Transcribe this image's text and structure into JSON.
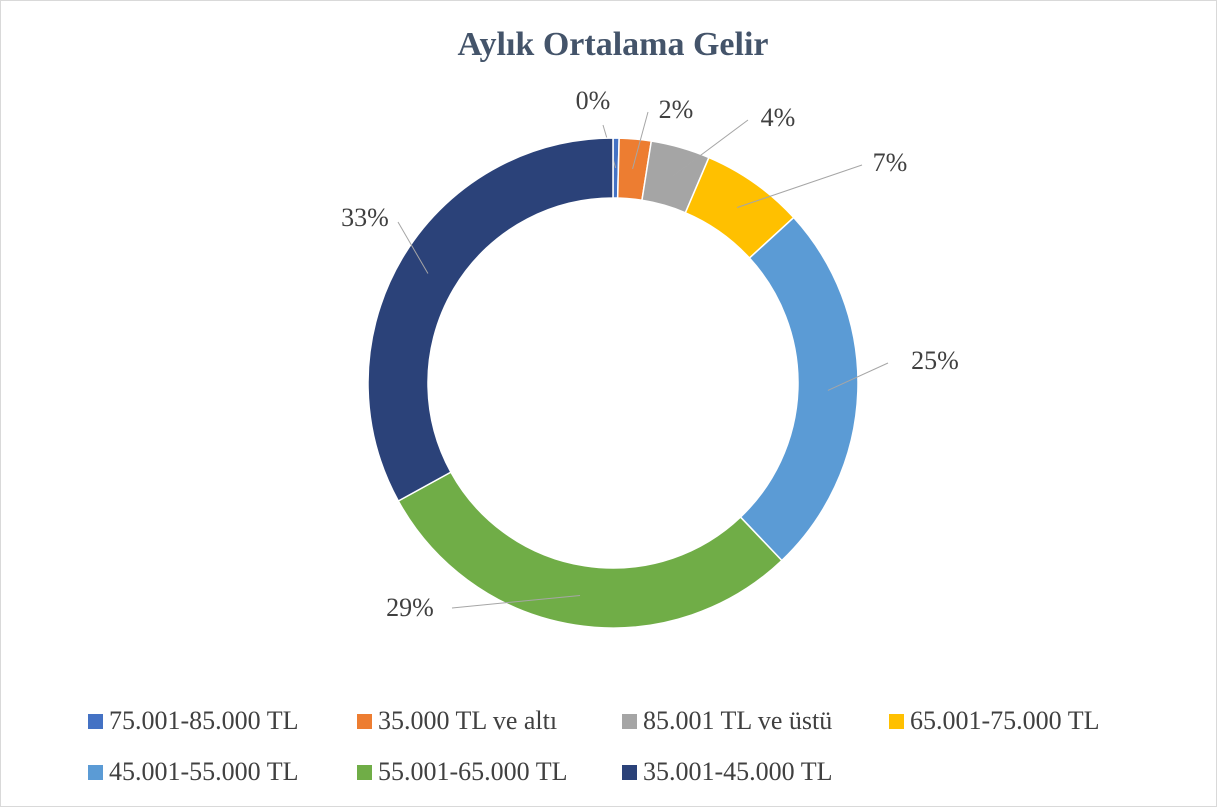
{
  "chart_data": {
    "type": "donut",
    "title": "Aylık Ortalama Gelir",
    "categories": [
      "75.001-85.000 TL",
      "35.000 TL ve altı",
      "85.001 TL ve üstü",
      "65.001-75.000 TL",
      "45.001-55.000 TL",
      "55.001-65.000 TL",
      "35.001-45.000 TL"
    ],
    "values": [
      0.4,
      2.1,
      3.9,
      6.8,
      24.7,
      29.1,
      33.0
    ],
    "value_labels": [
      "0%",
      "2%",
      "4%",
      "7%",
      "25%",
      "29%",
      "33%"
    ],
    "colors": [
      "#4472c4",
      "#ed7d31",
      "#a5a5a5",
      "#ffc000",
      "#5b9bd5",
      "#70ad47",
      "#2b4279"
    ],
    "legend": "bottom"
  }
}
